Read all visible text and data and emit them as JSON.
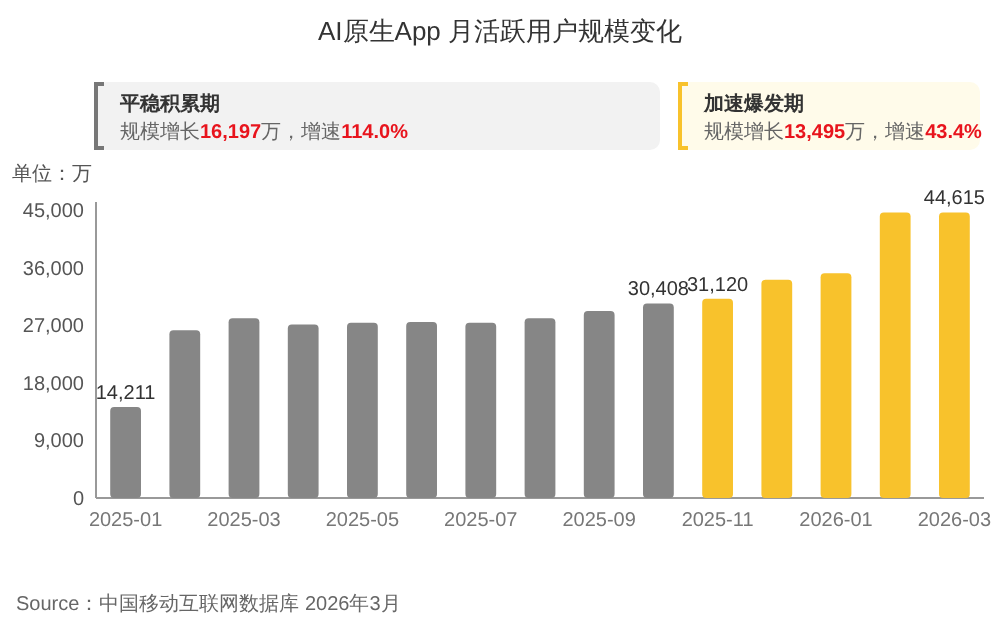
{
  "chart_data": {
    "type": "bar",
    "title": "AI原生App 月活跃用户规模变化",
    "ylabel": "单位：万",
    "categories": [
      "2025-01",
      null,
      "2025-03",
      null,
      "2025-05",
      null,
      "2025-07",
      null,
      "2025-09",
      null,
      "2025-11",
      null,
      "2026-01",
      null,
      "2026-03"
    ],
    "values": [
      14211,
      26200,
      28100,
      27100,
      27400,
      27500,
      27400,
      28100,
      29200,
      30408,
      31120,
      34100,
      35100,
      44600,
      44615
    ],
    "colors": [
      "#868686",
      "#868686",
      "#868686",
      "#868686",
      "#868686",
      "#868686",
      "#868686",
      "#868686",
      "#868686",
      "#868686",
      "#f8c22c",
      "#f8c22c",
      "#f8c22c",
      "#f8c22c",
      "#f8c22c"
    ],
    "value_labels": [
      "14,211",
      null,
      null,
      null,
      null,
      null,
      null,
      null,
      null,
      "30,408",
      "31,120",
      null,
      null,
      null,
      "44,615"
    ],
    "ylim": [
      0,
      45000
    ],
    "yticks": [
      {
        "value": 0,
        "label": "0"
      },
      {
        "value": 9000,
        "label": "9,000"
      },
      {
        "value": 18000,
        "label": "18,000"
      },
      {
        "value": 27000,
        "label": "27,000"
      },
      {
        "value": 36000,
        "label": "36,000"
      },
      {
        "value": 45000,
        "label": "45,000"
      }
    ],
    "annotations": [
      "平稳积累期",
      "规模增长**16,197**万，增速**114.0%**",
      "加速爆发期",
      "规模增长**13,495**万，增速**43.4%**",
      "Source：中国移动互联网数据库 2026年3月"
    ]
  }
}
